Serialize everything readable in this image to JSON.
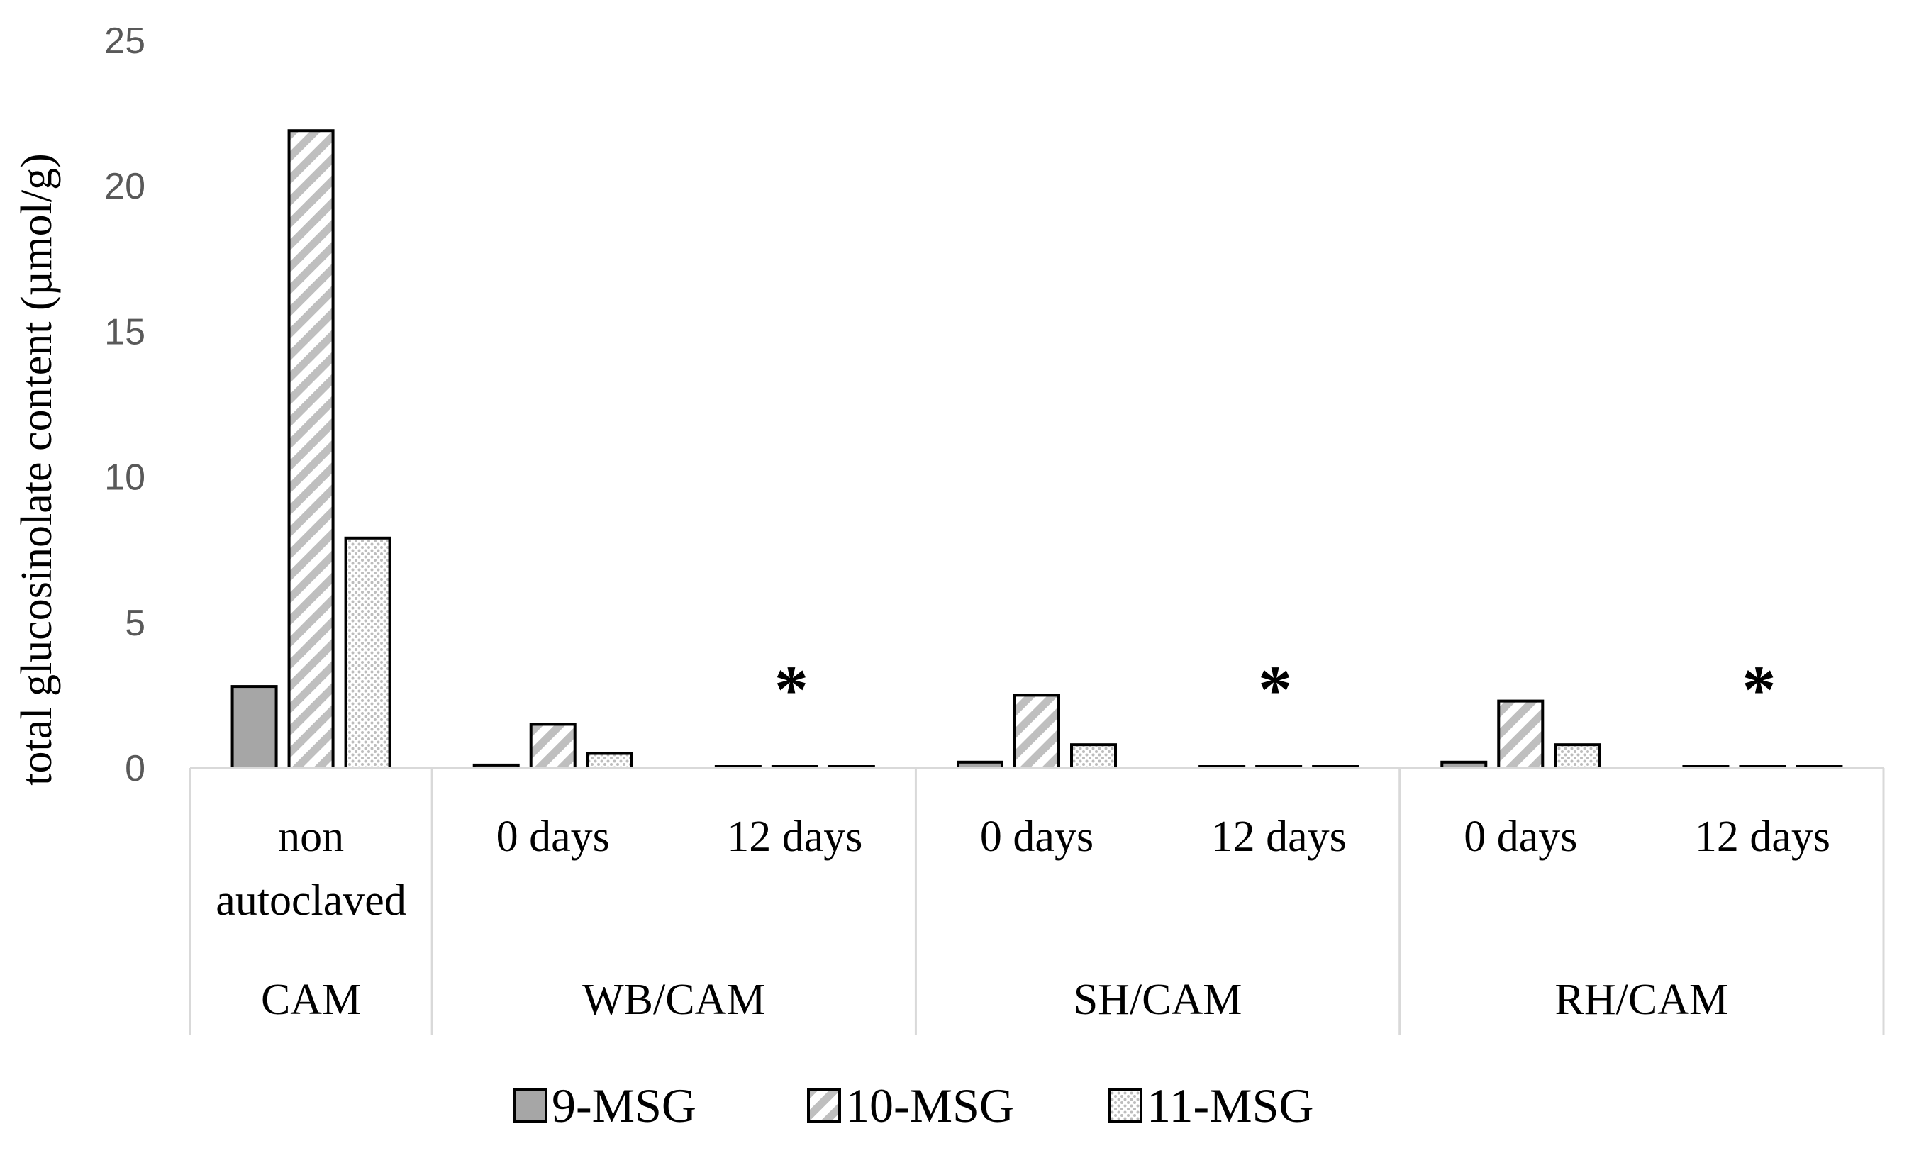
{
  "chart_data": {
    "type": "bar",
    "ylabel": "total glucosinolate content (µmol/g)",
    "ylim": [
      0,
      25
    ],
    "yticks": [
      0,
      5,
      10,
      15,
      20,
      25
    ],
    "grid": false,
    "legend_position": "bottom",
    "categories": [
      {
        "label": "non autoclaved",
        "label_lines": [
          "non",
          "autoclaved"
        ],
        "group": "CAM",
        "annotation": ""
      },
      {
        "label": "0 days",
        "label_lines": [
          "0 days"
        ],
        "group": "WB/CAM",
        "annotation": ""
      },
      {
        "label": "12 days",
        "label_lines": [
          "12 days"
        ],
        "group": "WB/CAM",
        "annotation": "*"
      },
      {
        "label": "0 days",
        "label_lines": [
          "0 days"
        ],
        "group": "SH/CAM",
        "annotation": ""
      },
      {
        "label": "12 days",
        "label_lines": [
          "12 days"
        ],
        "group": "SH/CAM",
        "annotation": "*"
      },
      {
        "label": "0 days",
        "label_lines": [
          "0 days"
        ],
        "group": "RH/CAM",
        "annotation": ""
      },
      {
        "label": "12 days",
        "label_lines": [
          "12 days"
        ],
        "group": "RH/CAM",
        "annotation": "*"
      }
    ],
    "groups": [
      "CAM",
      "WB/CAM",
      "SH/CAM",
      "RH/CAM"
    ],
    "series": [
      {
        "name": "9-MSG",
        "pattern": "solid-gray",
        "color": "#a6a6a6",
        "values": [
          2.8,
          0.1,
          0.0,
          0.2,
          0.0,
          0.2,
          0.0
        ]
      },
      {
        "name": "10-MSG",
        "pattern": "diagonal-stripes",
        "color": "#bfbfbf",
        "values": [
          21.9,
          1.5,
          0.0,
          2.5,
          0.0,
          2.3,
          0.0
        ]
      },
      {
        "name": "11-MSG",
        "pattern": "dots",
        "color": "#bfbfbf",
        "values": [
          7.9,
          0.5,
          0.0,
          0.8,
          0.0,
          0.8,
          0.0
        ]
      }
    ]
  }
}
